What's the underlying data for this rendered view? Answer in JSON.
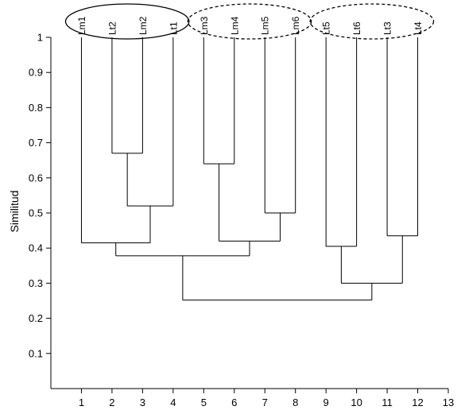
{
  "chart_data": {
    "type": "dendrogram",
    "ylabel": "Similitud",
    "xlabel": "",
    "xlim": [
      0,
      13
    ],
    "ylim": [
      0,
      1
    ],
    "x_ticks": [
      1,
      2,
      3,
      4,
      5,
      6,
      7,
      8,
      9,
      10,
      11,
      12,
      13
    ],
    "y_ticks": [
      0.1,
      0.2,
      0.3,
      0.4,
      0.5,
      0.6,
      0.7,
      0.8,
      0.9,
      1
    ],
    "grid": false,
    "leaves": [
      {
        "position": 1,
        "label": "Lm1"
      },
      {
        "position": 2,
        "label": "Lt2"
      },
      {
        "position": 3,
        "label": "Lm2"
      },
      {
        "position": 4,
        "label": "Lt1"
      },
      {
        "position": 5,
        "label": "Lm3"
      },
      {
        "position": 6,
        "label": "Lm4"
      },
      {
        "position": 7,
        "label": "Lm5"
      },
      {
        "position": 8,
        "label": "Lm6"
      },
      {
        "position": 9,
        "label": "Lt5"
      },
      {
        "position": 10,
        "label": "Lt6"
      },
      {
        "position": 11,
        "label": "Lt3"
      },
      {
        "position": 12,
        "label": "Lt4"
      }
    ],
    "merges": [
      {
        "id": "m1",
        "left": "leaf:2",
        "right": "leaf:3",
        "height": 0.67
      },
      {
        "id": "m2",
        "left": "m1",
        "right": "leaf:4",
        "height": 0.52
      },
      {
        "id": "m3",
        "left": "leaf:1",
        "right": "m2",
        "height": 0.415
      },
      {
        "id": "m4",
        "left": "leaf:5",
        "right": "leaf:6",
        "height": 0.64
      },
      {
        "id": "m5",
        "left": "leaf:7",
        "right": "leaf:8",
        "height": 0.5
      },
      {
        "id": "m6",
        "left": "m4",
        "right": "m5",
        "height": 0.42
      },
      {
        "id": "m7",
        "left": "m3",
        "right": "m6",
        "height": 0.378
      },
      {
        "id": "m8",
        "left": "leaf:9",
        "right": "leaf:10",
        "height": 0.405
      },
      {
        "id": "m9",
        "left": "leaf:11",
        "right": "leaf:12",
        "height": 0.435
      },
      {
        "id": "m10",
        "left": "m8",
        "right": "m9",
        "height": 0.3
      },
      {
        "id": "m11",
        "left": "m7",
        "right": "m10",
        "height": 0.252
      }
    ],
    "leaf_top": 1.0,
    "groups": [
      {
        "leaves": [
          1,
          4
        ],
        "style": "solid"
      },
      {
        "leaves": [
          5,
          8
        ],
        "style": "dashed"
      },
      {
        "leaves": [
          9,
          12
        ],
        "style": "dashed"
      }
    ]
  }
}
